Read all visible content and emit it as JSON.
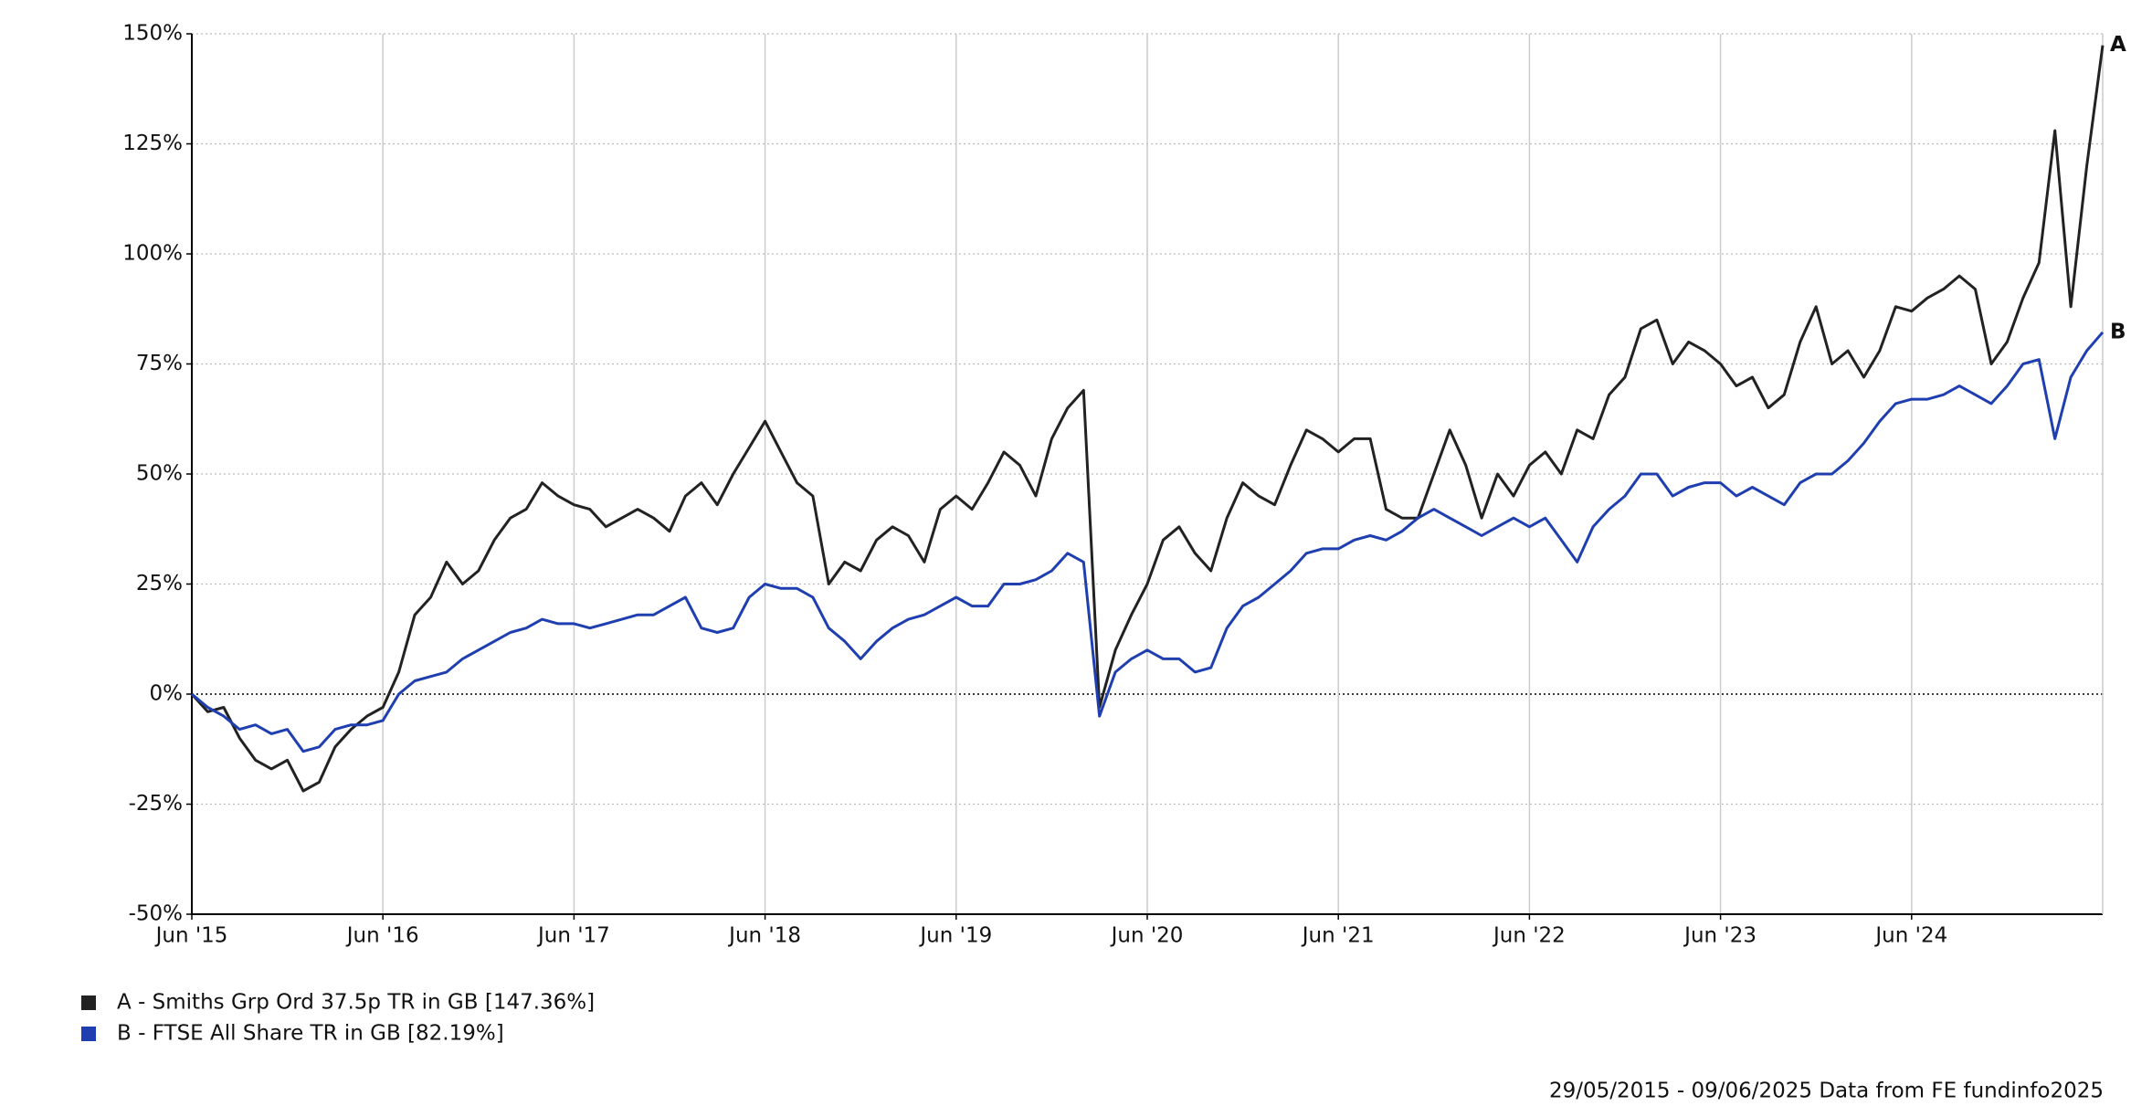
{
  "chart_data": {
    "type": "line",
    "x": [
      "2015-06",
      "2015-07",
      "2015-08",
      "2015-09",
      "2015-10",
      "2015-11",
      "2015-12",
      "2016-01",
      "2016-02",
      "2016-03",
      "2016-04",
      "2016-05",
      "2016-06",
      "2016-07",
      "2016-08",
      "2016-09",
      "2016-10",
      "2016-11",
      "2016-12",
      "2017-01",
      "2017-02",
      "2017-03",
      "2017-04",
      "2017-05",
      "2017-06",
      "2017-07",
      "2017-08",
      "2017-09",
      "2017-10",
      "2017-11",
      "2017-12",
      "2018-01",
      "2018-02",
      "2018-03",
      "2018-04",
      "2018-05",
      "2018-06",
      "2018-07",
      "2018-08",
      "2018-09",
      "2018-10",
      "2018-11",
      "2018-12",
      "2019-01",
      "2019-02",
      "2019-03",
      "2019-04",
      "2019-05",
      "2019-06",
      "2019-07",
      "2019-08",
      "2019-09",
      "2019-10",
      "2019-11",
      "2019-12",
      "2020-01",
      "2020-02",
      "2020-03",
      "2020-04",
      "2020-05",
      "2020-06",
      "2020-07",
      "2020-08",
      "2020-09",
      "2020-10",
      "2020-11",
      "2020-12",
      "2021-01",
      "2021-02",
      "2021-03",
      "2021-04",
      "2021-05",
      "2021-06",
      "2021-07",
      "2021-08",
      "2021-09",
      "2021-10",
      "2021-11",
      "2021-12",
      "2022-01",
      "2022-02",
      "2022-03",
      "2022-04",
      "2022-05",
      "2022-06",
      "2022-07",
      "2022-08",
      "2022-09",
      "2022-10",
      "2022-11",
      "2022-12",
      "2023-01",
      "2023-02",
      "2023-03",
      "2023-04",
      "2023-05",
      "2023-06",
      "2023-07",
      "2023-08",
      "2023-09",
      "2023-10",
      "2023-11",
      "2023-12",
      "2024-01",
      "2024-02",
      "2024-03",
      "2024-04",
      "2024-05",
      "2024-06",
      "2024-07",
      "2024-08",
      "2024-09",
      "2024-10",
      "2024-11",
      "2024-12",
      "2025-01",
      "2025-02",
      "2025-03",
      "2025-04",
      "2025-05",
      "2025-06"
    ],
    "series": [
      {
        "name": "A - Smiths Grp Ord 37.5p TR in GB [147.36%]",
        "end_label": "A",
        "color": "#222222",
        "values": [
          0,
          -4,
          -3,
          -10,
          -15,
          -17,
          -15,
          -22,
          -20,
          -12,
          -8,
          -5,
          -3,
          5,
          18,
          22,
          30,
          25,
          28,
          35,
          40,
          42,
          48,
          45,
          43,
          42,
          38,
          40,
          42,
          40,
          37,
          45,
          48,
          43,
          50,
          56,
          62,
          55,
          48,
          45,
          25,
          30,
          28,
          35,
          38,
          36,
          30,
          42,
          45,
          42,
          48,
          55,
          52,
          45,
          58,
          65,
          69,
          -3,
          10,
          18,
          25,
          35,
          38,
          32,
          28,
          40,
          48,
          45,
          43,
          52,
          60,
          58,
          55,
          58,
          58,
          42,
          40,
          40,
          50,
          60,
          52,
          40,
          50,
          45,
          52,
          55,
          50,
          60,
          58,
          68,
          72,
          83,
          85,
          75,
          80,
          78,
          75,
          70,
          72,
          65,
          68,
          80,
          88,
          75,
          78,
          72,
          78,
          88,
          87,
          90,
          92,
          95,
          92,
          75,
          80,
          90,
          98,
          128,
          88,
          120,
          147.36
        ]
      },
      {
        "name": "B - FTSE All Share TR in GB [82.19%]",
        "end_label": "B",
        "color": "#1f3fb0",
        "values": [
          0,
          -3,
          -5,
          -8,
          -7,
          -9,
          -8,
          -13,
          -12,
          -8,
          -7,
          -7,
          -6,
          0,
          3,
          4,
          5,
          8,
          10,
          12,
          14,
          15,
          17,
          16,
          16,
          15,
          16,
          17,
          18,
          18,
          20,
          22,
          15,
          14,
          15,
          22,
          25,
          24,
          24,
          22,
          15,
          12,
          8,
          12,
          15,
          17,
          18,
          20,
          22,
          20,
          20,
          25,
          25,
          26,
          28,
          32,
          30,
          -5,
          5,
          8,
          10,
          8,
          8,
          5,
          6,
          15,
          20,
          22,
          25,
          28,
          32,
          33,
          33,
          35,
          36,
          35,
          37,
          40,
          42,
          40,
          38,
          36,
          38,
          40,
          38,
          40,
          35,
          30,
          38,
          42,
          45,
          50,
          50,
          45,
          47,
          48,
          48,
          45,
          47,
          45,
          43,
          48,
          50,
          50,
          53,
          57,
          62,
          66,
          67,
          67,
          68,
          70,
          68,
          66,
          70,
          75,
          76,
          58,
          72,
          78,
          82.19
        ]
      }
    ],
    "xlim": [
      "2015-06",
      "2025-06"
    ],
    "xticks": [
      {
        "value": "2015-06",
        "label": "Jun '15"
      },
      {
        "value": "2016-06",
        "label": "Jun '16"
      },
      {
        "value": "2017-06",
        "label": "Jun '17"
      },
      {
        "value": "2018-06",
        "label": "Jun '18"
      },
      {
        "value": "2019-06",
        "label": "Jun '19"
      },
      {
        "value": "2020-06",
        "label": "Jun '20"
      },
      {
        "value": "2021-06",
        "label": "Jun '21"
      },
      {
        "value": "2022-06",
        "label": "Jun '22"
      },
      {
        "value": "2023-06",
        "label": "Jun '23"
      },
      {
        "value": "2024-06",
        "label": "Jun '24"
      }
    ],
    "ylim": [
      -50,
      150
    ],
    "yticks": [
      {
        "value": -50,
        "label": "-50%"
      },
      {
        "value": -25,
        "label": "-25%"
      },
      {
        "value": 0,
        "label": "0%"
      },
      {
        "value": 25,
        "label": "25%"
      },
      {
        "value": 50,
        "label": "50%"
      },
      {
        "value": 75,
        "label": "75%"
      },
      {
        "value": 100,
        "label": "100%"
      },
      {
        "value": 125,
        "label": "125%"
      },
      {
        "value": 150,
        "label": "150%"
      }
    ],
    "grid": true,
    "source": "29/05/2015 - 09/06/2025 Data from FE fundinfo2025"
  }
}
